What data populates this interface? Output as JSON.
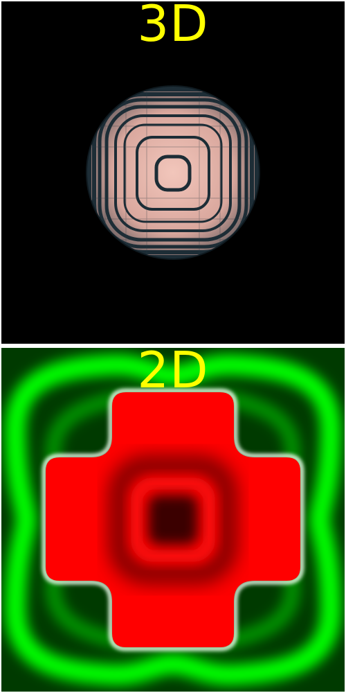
{
  "colors": {
    "label": "#ffff00",
    "background_3d": "#000000",
    "sphere_base": "#e8b4a8",
    "sphere_shadow": "#1a2a33",
    "field_dark_green": "#004400",
    "field_bright_green": "#00ff00",
    "field_red": "#ff0000",
    "field_dark_red": "#3a0000",
    "separator": "#ffffff"
  },
  "panels": {
    "top": {
      "title": "3D"
    },
    "bottom": {
      "title": "2D"
    }
  }
}
